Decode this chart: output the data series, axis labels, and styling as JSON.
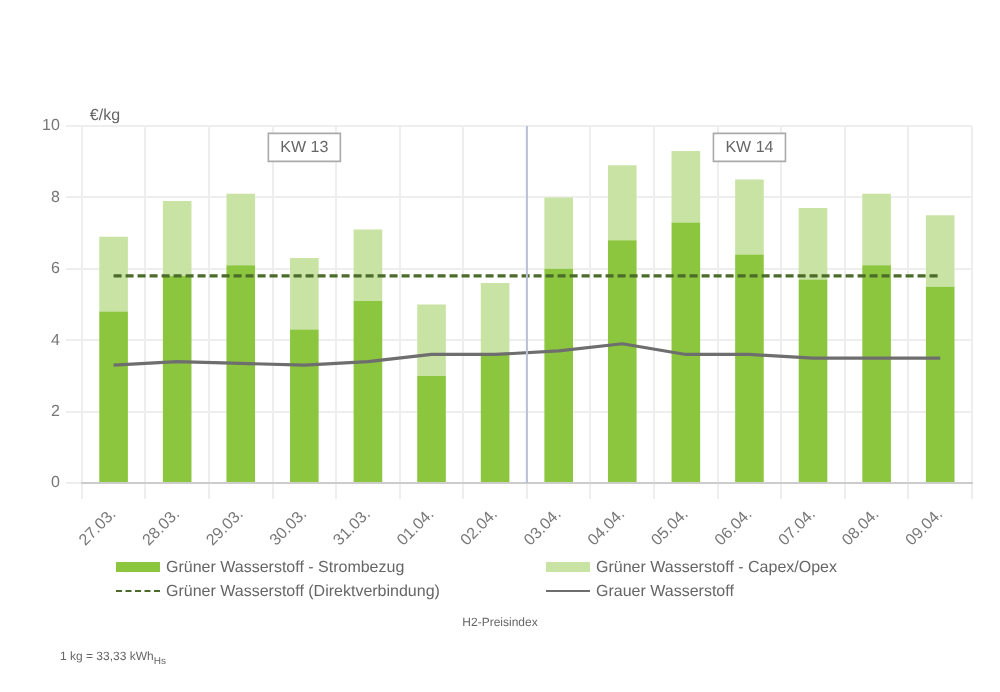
{
  "chart_data": {
    "type": "bar",
    "stacked": true,
    "ylabel": "€/kg",
    "categories": [
      "27.03.",
      "28.03.",
      "29.03.",
      "30.03.",
      "31.03.",
      "01.04.",
      "02.04.",
      "03.04.",
      "04.04.",
      "05.04.",
      "06.04.",
      "07.04.",
      "08.04.",
      "09.04."
    ],
    "series": [
      {
        "name": "Grüner Wasserstoff - Strombezug",
        "color": "#8cc63f",
        "values": [
          4.8,
          5.8,
          6.1,
          4.3,
          5.1,
          3.0,
          3.6,
          6.0,
          6.8,
          7.3,
          6.4,
          5.7,
          6.1,
          5.5
        ]
      },
      {
        "name": "Grüner Wasserstoff - Capex/Opex",
        "color": "#c8e3a4",
        "values": [
          2.1,
          2.1,
          2.0,
          2.0,
          2.0,
          2.0,
          2.0,
          2.0,
          2.1,
          2.0,
          2.1,
          2.0,
          2.0,
          2.0
        ]
      },
      {
        "name": "Grüner Wasserstoff (Direktverbindung)",
        "type": "line",
        "line_style": "dashed",
        "color": "#4b6b2a",
        "values": [
          5.8,
          5.8,
          5.8,
          5.8,
          5.8,
          5.8,
          5.8,
          5.8,
          5.8,
          5.8,
          5.8,
          5.8,
          5.8,
          5.8
        ]
      },
      {
        "name": "Grauer Wasserstoff",
        "type": "line",
        "line_style": "solid",
        "color": "#6e6e6e",
        "values": [
          3.3,
          3.4,
          3.35,
          3.3,
          3.4,
          3.6,
          3.6,
          3.7,
          3.9,
          3.6,
          3.6,
          3.5,
          3.5,
          3.5
        ]
      }
    ],
    "ylim": [
      0,
      10
    ],
    "yticks": [
      0,
      2,
      4,
      6,
      8,
      10
    ],
    "grid": true,
    "legend": "bottom",
    "marker": "none",
    "ref_lines": [
      {
        "axis": "x",
        "value": "03.04.",
        "color": "#b8bfd6"
      }
    ],
    "annotations": [
      {
        "text": "KW 13",
        "x": "30.03.",
        "y": 9.4
      },
      {
        "text": "KW 14",
        "x": "06.04.",
        "y": 9.4
      },
      "H2-Preisindex",
      "1 kg = 33,33 kWh$_{Hs}$"
    ]
  }
}
